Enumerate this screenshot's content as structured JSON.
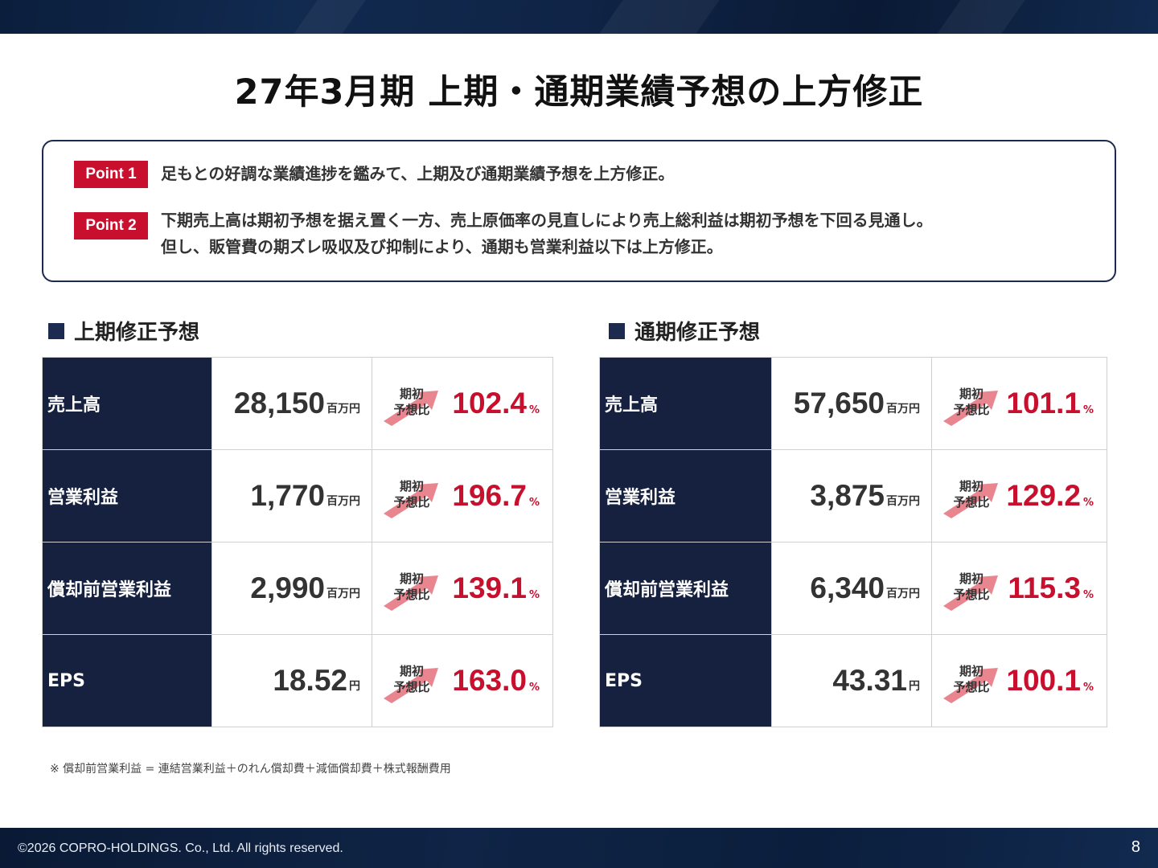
{
  "title": "27年3月期 上期・通期業績予想の上方修正",
  "points": [
    {
      "badge": "Point 1",
      "lines": [
        "足もとの好調な業績進捗を鑑みて、上期及び通期業績予想を上方修正。"
      ]
    },
    {
      "badge": "Point 2",
      "lines": [
        "下期売上高は期初予想を据え置く一方、売上原価率の見直しにより売上総利益は期初予想を下回る見通し。",
        "但し、販管費の期ズレ吸収及び抑制により、通期も営業利益以下は上方修正。"
      ]
    }
  ],
  "ratio_label_line1": "期初",
  "ratio_label_line2": "予想比",
  "percent_sign": "%",
  "half_year": {
    "heading": "上期修正予想",
    "rows": [
      {
        "label": "売上高",
        "value": "28,150",
        "unit": "百万円",
        "ratio": "102.4"
      },
      {
        "label": "営業利益",
        "value": "1,770",
        "unit": "百万円",
        "ratio": "196.7"
      },
      {
        "label": "償却前営業利益",
        "value": "2,990",
        "unit": "百万円",
        "ratio": "139.1"
      },
      {
        "label": "EPS",
        "value": "18.52",
        "unit": "円",
        "ratio": "163.0"
      }
    ]
  },
  "full_year": {
    "heading": "通期修正予想",
    "rows": [
      {
        "label": "売上高",
        "value": "57,650",
        "unit": "百万円",
        "ratio": "101.1"
      },
      {
        "label": "営業利益",
        "value": "3,875",
        "unit": "百万円",
        "ratio": "129.2"
      },
      {
        "label": "償却前営業利益",
        "value": "6,340",
        "unit": "百万円",
        "ratio": "115.3"
      },
      {
        "label": "EPS",
        "value": "43.31",
        "unit": "円",
        "ratio": "100.1"
      }
    ]
  },
  "footnote": "※ 償却前営業利益 = 連結営業利益＋のれん償却費＋減価償却費＋株式報酬費用",
  "footer": {
    "copyright": "©2026 COPRO-HOLDINGS. Co., Ltd. All rights reserved.",
    "page_number": "8"
  },
  "colors": {
    "navy": "#16213f",
    "accent_red": "#c8102e",
    "arrow_pink": "#e8858f"
  }
}
